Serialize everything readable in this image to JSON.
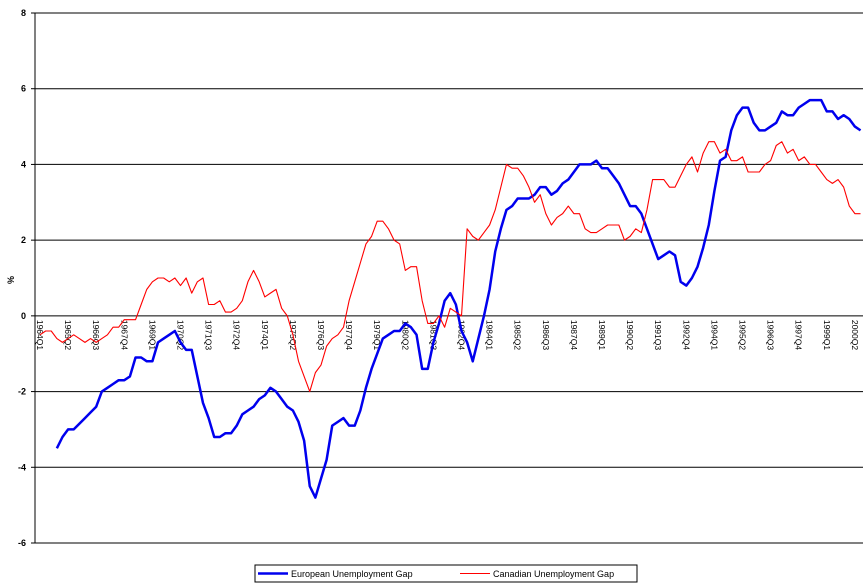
{
  "chart_data": {
    "type": "line",
    "y_label": "%",
    "legend": "bottom",
    "grid": true,
    "ylim": [
      -6,
      8
    ],
    "yticks": [
      -6,
      -4,
      -2,
      0,
      2,
      4,
      6,
      8
    ],
    "categories": [
      "1964Q1",
      null,
      null,
      null,
      null,
      "1965Q2",
      null,
      null,
      null,
      null,
      "1966Q3",
      null,
      null,
      null,
      null,
      "1967Q4",
      null,
      null,
      null,
      null,
      "1969Q1",
      null,
      null,
      null,
      null,
      "1970Q2",
      null,
      null,
      null,
      null,
      "1971Q3",
      null,
      null,
      null,
      null,
      "1972Q4",
      null,
      null,
      null,
      null,
      "1974Q1",
      null,
      null,
      null,
      null,
      "1975Q2",
      null,
      null,
      null,
      null,
      "1976Q3",
      null,
      null,
      null,
      null,
      "1977Q4",
      null,
      null,
      null,
      null,
      "1979Q1",
      null,
      null,
      null,
      null,
      "1980Q2",
      null,
      null,
      null,
      null,
      "1981Q3",
      null,
      null,
      null,
      null,
      "1982Q4",
      null,
      null,
      null,
      null,
      "1984Q1",
      null,
      null,
      null,
      null,
      "1985Q2",
      null,
      null,
      null,
      null,
      "1986Q3",
      null,
      null,
      null,
      null,
      "1987Q4",
      null,
      null,
      null,
      null,
      "1989Q1",
      null,
      null,
      null,
      null,
      "1990Q2",
      null,
      null,
      null,
      null,
      "1991Q3",
      null,
      null,
      null,
      null,
      "1992Q4",
      null,
      null,
      null,
      null,
      "1994Q1",
      null,
      null,
      null,
      null,
      "1995Q2",
      null,
      null,
      null,
      null,
      "1996Q3",
      null,
      null,
      null,
      null,
      "1997Q4",
      null,
      null,
      null,
      null,
      "1999Q1",
      null,
      null,
      null,
      null,
      "2000Q2",
      null
    ],
    "series": [
      {
        "name": "European Unemployment Gap",
        "color": "#0000ee",
        "values": [
          null,
          null,
          null,
          -3.5,
          -3.2,
          -3.0,
          -3.0,
          -2.85,
          -2.7,
          -2.55,
          -2.4,
          -2.0,
          -1.9,
          -1.8,
          -1.7,
          -1.7,
          -1.6,
          -1.1,
          -1.1,
          -1.2,
          -1.2,
          -0.7,
          -0.6,
          -0.5,
          -0.4,
          -0.7,
          -0.9,
          -0.9,
          -1.6,
          -2.3,
          -2.7,
          -3.2,
          -3.2,
          -3.1,
          -3.1,
          -2.9,
          -2.6,
          -2.5,
          -2.4,
          -2.2,
          -2.1,
          -1.9,
          -2.0,
          -2.2,
          -2.4,
          -2.5,
          -2.8,
          -3.3,
          -4.5,
          -4.8,
          -4.3,
          -3.8,
          -2.9,
          -2.8,
          -2.7,
          -2.9,
          -2.9,
          -2.5,
          -1.9,
          -1.4,
          -1.0,
          -0.6,
          -0.5,
          -0.4,
          -0.4,
          -0.2,
          -0.3,
          -0.5,
          -1.4,
          -1.4,
          -0.7,
          -0.2,
          0.4,
          0.6,
          0.3,
          -0.4,
          -0.7,
          -1.2,
          -0.6,
          0.0,
          0.7,
          1.7,
          2.3,
          2.8,
          2.9,
          3.1,
          3.1,
          3.1,
          3.2,
          3.4,
          3.4,
          3.2,
          3.3,
          3.5,
          3.6,
          3.8,
          4.0,
          4.0,
          4.0,
          4.1,
          3.9,
          3.9,
          3.7,
          3.5,
          3.2,
          2.9,
          2.9,
          2.7,
          2.3,
          1.9,
          1.5,
          1.6,
          1.7,
          1.6,
          0.9,
          0.8,
          1.0,
          1.3,
          1.8,
          2.4,
          3.3,
          4.1,
          4.2,
          4.9,
          5.3,
          5.5,
          5.5,
          5.1,
          4.9,
          4.9,
          5.0,
          5.1,
          5.4,
          5.3,
          5.3,
          5.5,
          5.6,
          5.7,
          5.7,
          5.7,
          5.4,
          5.4,
          5.2,
          5.3,
          5.2,
          5.0,
          4.9
        ]
      },
      {
        "name": "Canadian Unemployment Gap",
        "color": "#ff0000",
        "values": [
          -0.5,
          -0.4,
          -0.4,
          -0.6,
          -0.7,
          -0.6,
          -0.5,
          -0.6,
          -0.7,
          -0.6,
          -0.7,
          -0.6,
          -0.5,
          -0.3,
          -0.3,
          -0.1,
          -0.1,
          -0.1,
          0.3,
          0.7,
          0.9,
          1.0,
          1.0,
          0.9,
          1.0,
          0.8,
          1.0,
          0.6,
          0.9,
          1.0,
          0.3,
          0.3,
          0.4,
          0.1,
          0.1,
          0.2,
          0.4,
          0.9,
          1.2,
          0.9,
          0.5,
          0.6,
          0.7,
          0.2,
          0.0,
          -0.5,
          -1.2,
          -1.6,
          -2.0,
          -1.5,
          -1.3,
          -0.8,
          -0.6,
          -0.5,
          -0.3,
          0.4,
          0.9,
          1.4,
          1.9,
          2.1,
          2.5,
          2.5,
          2.3,
          2.0,
          1.9,
          1.2,
          1.3,
          1.3,
          0.4,
          -0.2,
          -0.2,
          0.0,
          -0.3,
          0.2,
          0.1,
          0.0,
          2.3,
          2.1,
          2.0,
          2.2,
          2.4,
          2.8,
          3.4,
          4.0,
          3.9,
          3.9,
          3.7,
          3.4,
          3.0,
          3.2,
          2.7,
          2.4,
          2.6,
          2.7,
          2.9,
          2.7,
          2.7,
          2.3,
          2.2,
          2.2,
          2.3,
          2.4,
          2.4,
          2.4,
          2.0,
          2.1,
          2.3,
          2.2,
          2.8,
          3.6,
          3.6,
          3.6,
          3.4,
          3.4,
          3.7,
          4.0,
          4.2,
          3.8,
          4.3,
          4.6,
          4.6,
          4.3,
          4.4,
          4.1,
          4.1,
          4.2,
          3.8,
          3.8,
          3.8,
          4.0,
          4.1,
          4.5,
          4.6,
          4.3,
          4.4,
          4.1,
          4.2,
          4.0,
          4.0,
          3.8,
          3.6,
          3.5,
          3.6,
          3.4,
          2.9,
          2.7,
          2.7
        ]
      }
    ]
  }
}
